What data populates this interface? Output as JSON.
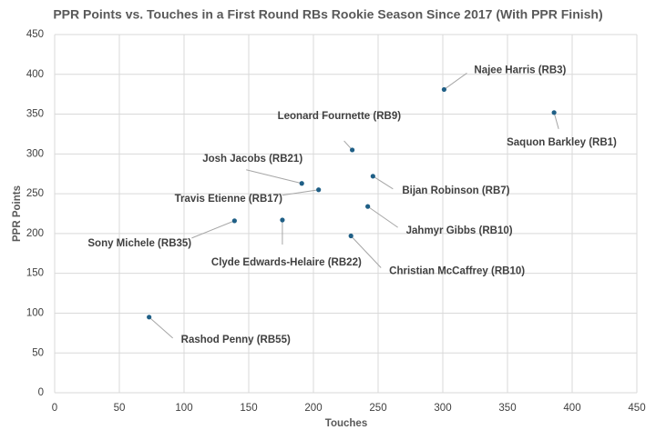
{
  "chart_data": {
    "type": "scatter",
    "title": "PPR Points vs. Touches in a First Round RBs Rookie Season Since 2017 (With PPR Finish)",
    "x_label": "Touches",
    "y_label": "PPR Points",
    "xlim": [
      0,
      450
    ],
    "xticks": [
      0,
      50,
      100,
      150,
      200,
      250,
      300,
      350,
      400,
      450
    ],
    "ylim": [
      0,
      450
    ],
    "yticks": [
      0,
      50,
      100,
      150,
      200,
      250,
      300,
      350,
      400,
      450
    ],
    "grid": true,
    "series": [
      {
        "color": "#1f5f86",
        "x": [
          301,
          386,
          230,
          246,
          191,
          204,
          242,
          139,
          176,
          229,
          73
        ],
        "values": [
          381,
          352,
          305,
          272,
          263,
          255,
          234,
          216,
          217,
          197,
          95
        ],
        "labels": [
          "Najee Harris (RB3)",
          "Saquon Barkley (RB1)",
          "Leonard Fournette (RB9)",
          "Bijan Robinson (RB7)",
          "Josh Jacobs (RB21)",
          "Travis Etienne (RB17)",
          "Jahmyr Gibbs (RB10)",
          "Sony Michele (RB35)",
          "Clyde Edwards-Helaire (RB22)",
          "Christian McCaffrey (RB10)",
          "Rashod Penny (RB55)"
        ]
      }
    ]
  }
}
